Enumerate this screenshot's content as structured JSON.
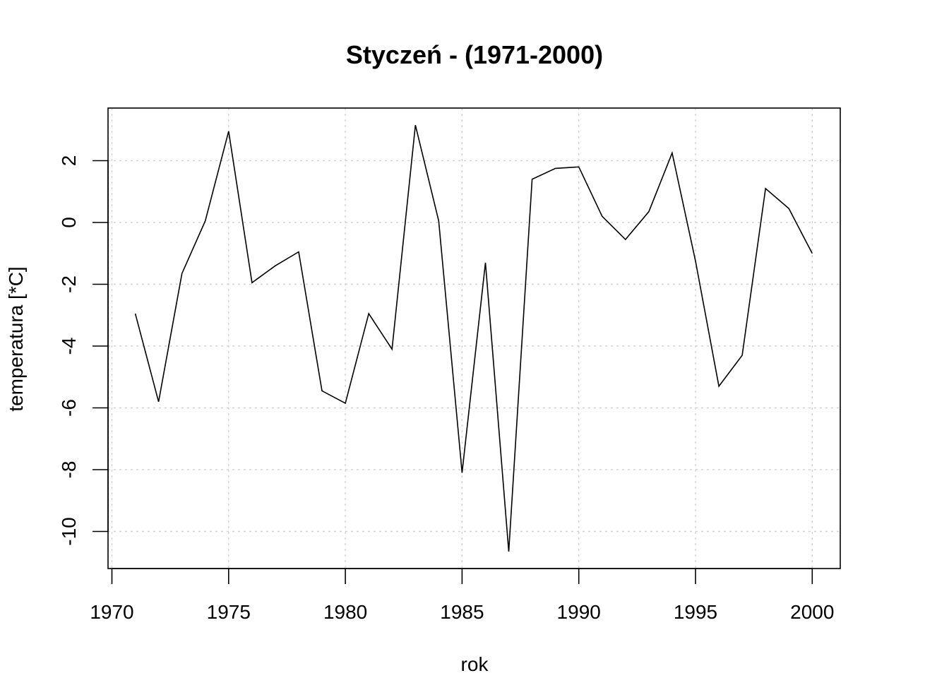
{
  "chart_data": {
    "type": "line",
    "title": "Styczeń - (1971-2000)",
    "xlabel": "rok",
    "ylabel": "temperatura [*C]",
    "xlim": [
      1970,
      2000
    ],
    "ylim": [
      -11,
      3
    ],
    "x_ticks": [
      1970,
      1975,
      1980,
      1985,
      1990,
      1995,
      2000
    ],
    "y_ticks": [
      -10,
      -8,
      -6,
      -4,
      -2,
      0,
      2
    ],
    "grid": true,
    "series": [
      {
        "x": [
          1971,
          1972,
          1973,
          1974,
          1975,
          1976,
          1977,
          1978,
          1979,
          1980,
          1981,
          1982,
          1983,
          1984,
          1985,
          1986,
          1987,
          1988,
          1989,
          1990,
          1991,
          1992,
          1993,
          1994,
          1995,
          1996,
          1997,
          1998,
          1999,
          2000
        ],
        "values": [
          -2.95,
          -5.8,
          -1.65,
          0.05,
          2.95,
          -1.95,
          -1.4,
          -0.95,
          -5.45,
          -5.85,
          -2.95,
          -4.1,
          3.15,
          0.05,
          -8.1,
          -1.3,
          -10.65,
          1.4,
          1.75,
          1.8,
          0.2,
          -0.55,
          0.35,
          2.25,
          -1.25,
          -5.3,
          -4.3,
          1.1,
          0.45,
          -1.0
        ]
      }
    ]
  }
}
